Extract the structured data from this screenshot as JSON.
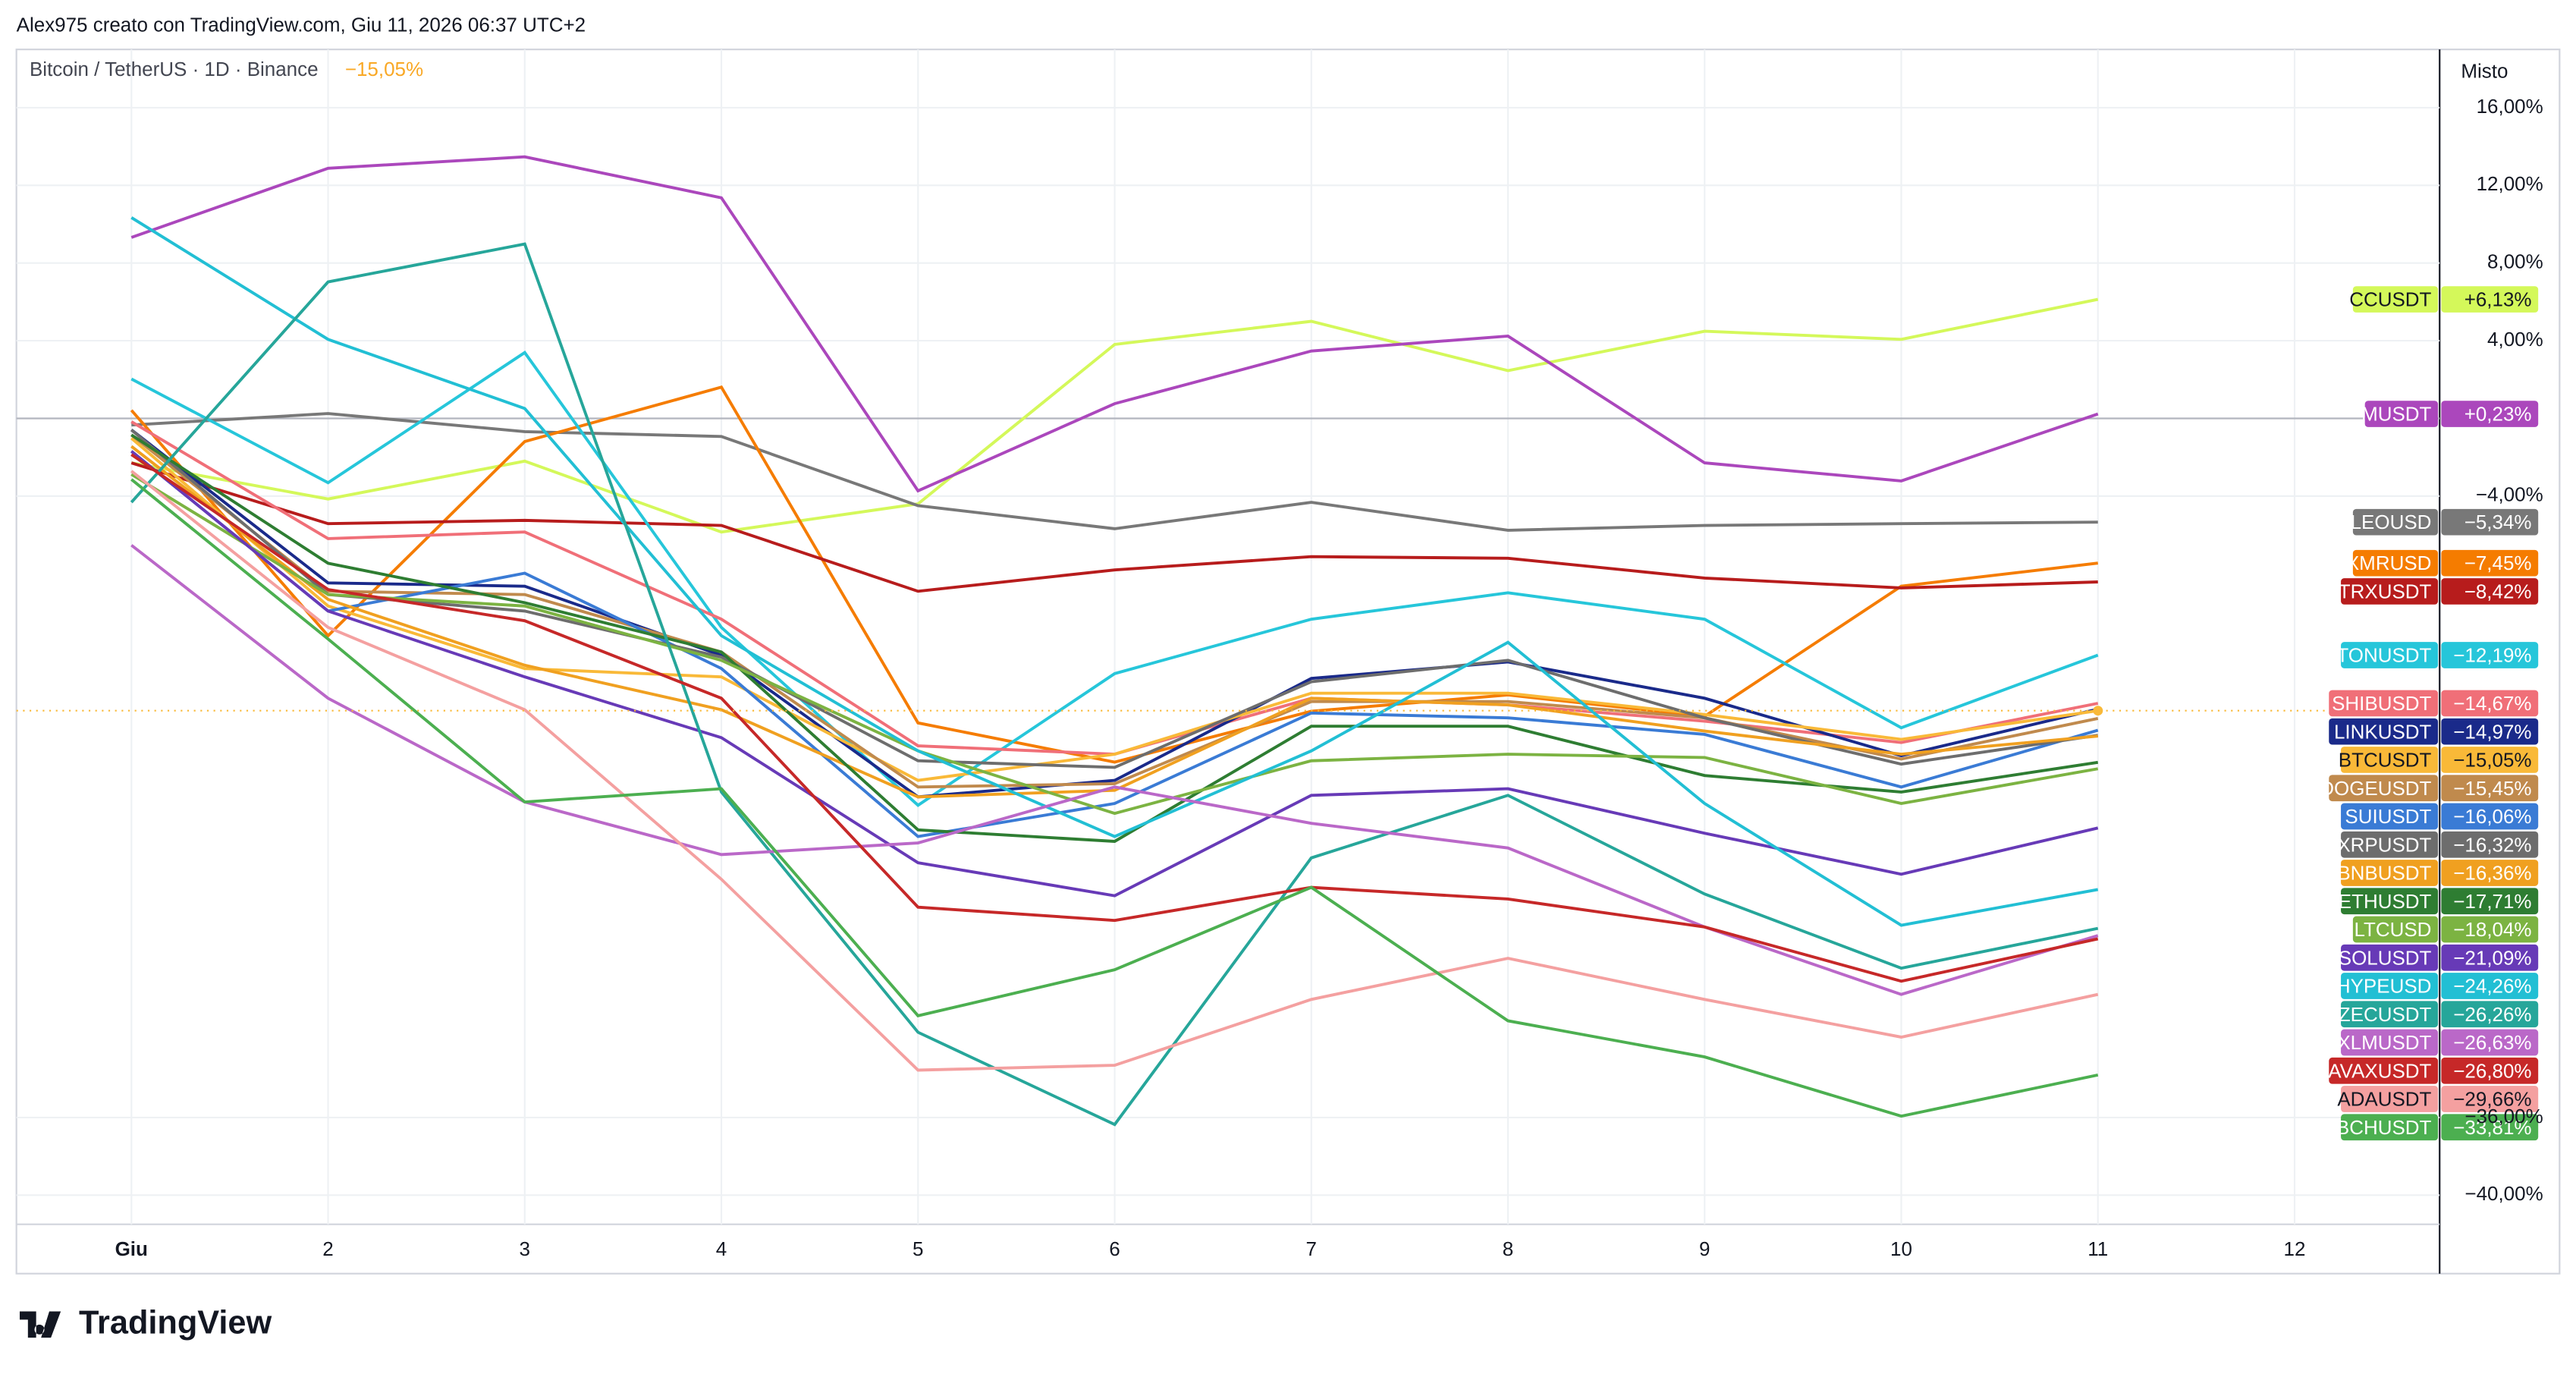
{
  "header": {
    "author_line": "Alex975 creato con TradingView.com, Giu 11, 2026 06:37 UTC+2",
    "symbol_line": "Bitcoin / TetherUS · 1D · Binance",
    "symbol_change": "−15,05%",
    "scale_mode": "Misto",
    "brand": "TradingView"
  },
  "chart_data": {
    "type": "line",
    "baseline": 0,
    "categories": [
      "Giu",
      "2",
      "3",
      "4",
      "5",
      "6",
      "7",
      "8",
      "9",
      "10",
      "11",
      "12"
    ],
    "ylim": [
      -41.5,
      19
    ],
    "yticks": [
      {
        "value": 16,
        "label": "16,00%"
      },
      {
        "value": 12,
        "label": "12,00%"
      },
      {
        "value": 8,
        "label": "8,00%"
      },
      {
        "value": 4,
        "label": "4,00%"
      },
      {
        "value": -4,
        "label": "−4,00%"
      },
      {
        "value": -36,
        "label": "−36,00%"
      },
      {
        "value": -40,
        "label": "−40,00%"
      }
    ],
    "grid": true,
    "series": [
      {
        "name": "CCUSDT",
        "color": "#d4f85a",
        "last_label": "+6,13%",
        "values": [
          -2.29,
          -4.15,
          -2.2,
          -5.85,
          -4.4,
          3.81,
          5.0,
          2.46,
          4.49,
          4.07,
          6.13,
          null
        ]
      },
      {
        "name": "MUSDT",
        "color": "#ab47bc",
        "last_label": "+0,23%",
        "values": [
          9.32,
          12.88,
          13.47,
          11.36,
          -3.73,
          0.76,
          3.47,
          4.24,
          -2.29,
          -3.22,
          0.23,
          null
        ]
      },
      {
        "name": "LEOUSD",
        "color": "#787878",
        "last_label": "−5,34%",
        "values": [
          -0.34,
          0.25,
          -0.68,
          -0.93,
          -4.49,
          -5.68,
          -4.32,
          -5.76,
          -5.51,
          -5.42,
          -5.34,
          null
        ]
      },
      {
        "name": "XMRUSD",
        "color": "#f57c00",
        "last_label": "−7,45%",
        "values": [
          0.42,
          -11.19,
          -1.19,
          1.61,
          -15.68,
          -17.7,
          -15.08,
          -14.24,
          -15.34,
          -8.64,
          -7.45,
          null
        ]
      },
      {
        "name": "TRXUSDT",
        "color": "#b71c1c",
        "last_label": "−8,42%",
        "values": [
          -2.29,
          -5.42,
          -5.25,
          -5.51,
          -8.9,
          -7.8,
          -7.12,
          -7.2,
          -8.22,
          -8.73,
          -8.42,
          null
        ]
      },
      {
        "name": "TONUSDT",
        "color": "#26c6da",
        "last_label": "−12,19%",
        "values": [
          2.03,
          -3.31,
          3.39,
          -10.76,
          -19.92,
          -13.14,
          -10.34,
          -8.98,
          -10.34,
          -15.93,
          -12.19,
          null
        ]
      },
      {
        "name": "SHIBUSDT",
        "color": "#f06f78",
        "last_label": "−14,67%",
        "values": [
          -0.17,
          -6.19,
          -5.85,
          -10.34,
          -16.86,
          -17.29,
          -14.41,
          -14.75,
          -15.59,
          -16.69,
          -14.67,
          null
        ]
      },
      {
        "name": "LINKUSDT",
        "color": "#1a2a8a",
        "last_label": "−14,97%",
        "values": [
          -0.59,
          -8.47,
          -8.64,
          -12.2,
          -19.49,
          -18.64,
          -13.39,
          -12.54,
          -14.41,
          -17.37,
          -14.97,
          null
        ]
      },
      {
        "name": "BTCUSDT",
        "color": "#f9b938",
        "last_label": "−15,05%",
        "values": [
          -1.02,
          -9.66,
          -12.88,
          -13.31,
          -18.64,
          -17.29,
          -14.15,
          -14.15,
          -15.25,
          -16.53,
          -15.05,
          null
        ]
      },
      {
        "name": "DOGEUSDT",
        "color": "#c08a4d",
        "last_label": "−15,45%",
        "values": [
          -0.85,
          -8.9,
          -9.07,
          -12.03,
          -18.98,
          -18.81,
          -14.58,
          -14.58,
          -15.42,
          -17.54,
          -15.45,
          null
        ]
      },
      {
        "name": "SUIUSDT",
        "color": "#3a7bd5",
        "last_label": "−16,06%",
        "values": [
          -1.69,
          -9.92,
          -7.97,
          -12.88,
          -21.53,
          -19.83,
          -15.17,
          -15.42,
          -16.27,
          -18.98,
          -16.06,
          null
        ]
      },
      {
        "name": "XRPUSDT",
        "color": "#6d6d6d",
        "last_label": "−16,32%",
        "values": [
          -0.59,
          -9.07,
          -9.92,
          -12.29,
          -17.63,
          -17.97,
          -13.56,
          -12.46,
          -15.42,
          -17.8,
          -16.32,
          null
        ]
      },
      {
        "name": "BNBUSDT",
        "color": "#f0a020",
        "last_label": "−16,36%",
        "values": [
          -1.44,
          -9.32,
          -12.71,
          -15.0,
          -19.49,
          -19.15,
          -14.41,
          -14.75,
          -16.1,
          -17.29,
          -16.36,
          null
        ]
      },
      {
        "name": "ETHUSDT",
        "color": "#2e7d32",
        "last_label": "−17,71%",
        "values": [
          -0.85,
          -7.46,
          -9.49,
          -12.03,
          -21.19,
          -21.78,
          -15.85,
          -15.85,
          -18.39,
          -19.24,
          -17.71,
          null
        ]
      },
      {
        "name": "LTCUSD",
        "color": "#7cb342",
        "last_label": "−18,04%",
        "values": [
          -2.88,
          -9.07,
          -9.66,
          -12.46,
          -17.12,
          -20.34,
          -17.63,
          -17.29,
          -17.46,
          -19.83,
          -18.04,
          null
        ]
      },
      {
        "name": "SOLUSDT",
        "color": "#673ab7",
        "last_label": "−21,09%",
        "values": [
          -1.69,
          -9.92,
          -13.31,
          -16.44,
          -22.88,
          -24.58,
          -19.41,
          -19.07,
          -21.36,
          -23.47,
          -21.09,
          null
        ]
      },
      {
        "name": "HYPEUSD",
        "color": "#22bfd4",
        "last_label": "−24,26%",
        "values": [
          10.34,
          4.07,
          0.51,
          -11.19,
          -17.12,
          -21.53,
          -17.12,
          -11.53,
          -19.83,
          -26.1,
          -24.26,
          null
        ]
      },
      {
        "name": "ZECUSDT",
        "color": "#26a69a",
        "last_label": "−26,26%",
        "values": [
          -4.32,
          7.03,
          8.98,
          -19.24,
          -31.61,
          -36.36,
          -22.63,
          -19.41,
          -24.49,
          -28.31,
          -26.26,
          null
        ]
      },
      {
        "name": "XLMUSDT",
        "color": "#ba68c8",
        "last_label": "−26,63%",
        "values": [
          -6.53,
          -14.41,
          -19.75,
          -22.46,
          -21.86,
          -18.98,
          -20.85,
          -22.12,
          -26.19,
          -29.66,
          -26.63,
          null
        ]
      },
      {
        "name": "AVAXUSDT",
        "color": "#c62828",
        "last_label": "−26,80%",
        "values": [
          -1.86,
          -8.81,
          -10.42,
          -14.41,
          -25.17,
          -25.85,
          -24.15,
          -24.75,
          -26.19,
          -28.98,
          -26.8,
          null
        ]
      },
      {
        "name": "ADAUSDT",
        "color": "#f4a0a0",
        "last_label": "−29,66%",
        "values": [
          -2.71,
          -10.76,
          -15.0,
          -23.73,
          -33.56,
          -33.31,
          -29.92,
          -27.8,
          -29.92,
          -31.86,
          -29.66,
          null
        ]
      },
      {
        "name": "BCHUSDT",
        "color": "#4caf50",
        "last_label": "−33,81%",
        "values": [
          -3.14,
          -11.36,
          -19.75,
          -19.07,
          -30.76,
          -28.39,
          -24.15,
          -31.02,
          -32.88,
          -35.93,
          -33.81,
          null
        ]
      }
    ]
  }
}
